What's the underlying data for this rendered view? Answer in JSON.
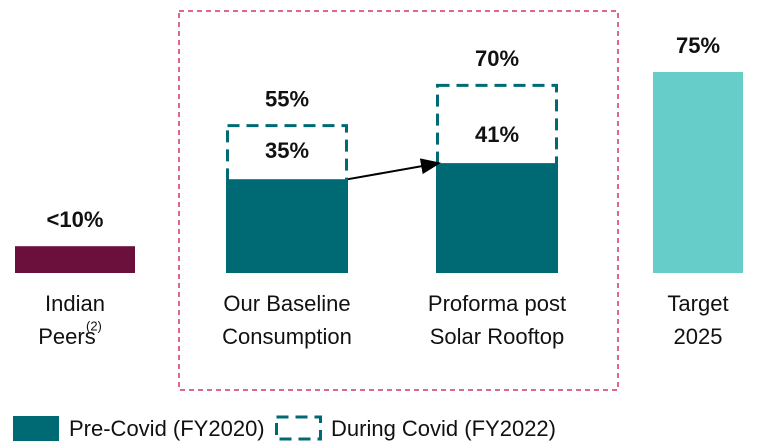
{
  "chart_data": {
    "type": "bar",
    "categories": [
      [
        "Indian",
        "Peers"
      ],
      [
        "Our Baseline",
        "Consumption"
      ],
      [
        "Proforma post",
        "Solar Rooftop"
      ],
      [
        "Target",
        "2025"
      ]
    ],
    "category_note": "(2)",
    "ylim": [
      0,
      100
    ],
    "series": [
      {
        "name": "Pre-Covid (FY2020)",
        "color": "#006a74",
        "style": "solid",
        "values": [
          null,
          35,
          41,
          null
        ],
        "value_labels": [
          null,
          "35%",
          "41%",
          null
        ]
      },
      {
        "name": "During Covid (FY2022)",
        "color": "#006a74",
        "style": "dashed",
        "values": [
          null,
          55,
          70,
          null
        ],
        "value_labels": [
          null,
          "55%",
          "70%",
          null
        ]
      }
    ],
    "other_bars": {
      "values": [
        10,
        null,
        null,
        75
      ],
      "colors": [
        "#6b0f3c",
        null,
        null,
        "#66cdc8"
      ],
      "value_labels": [
        "<10%",
        null,
        null,
        "75%"
      ]
    }
  }
}
